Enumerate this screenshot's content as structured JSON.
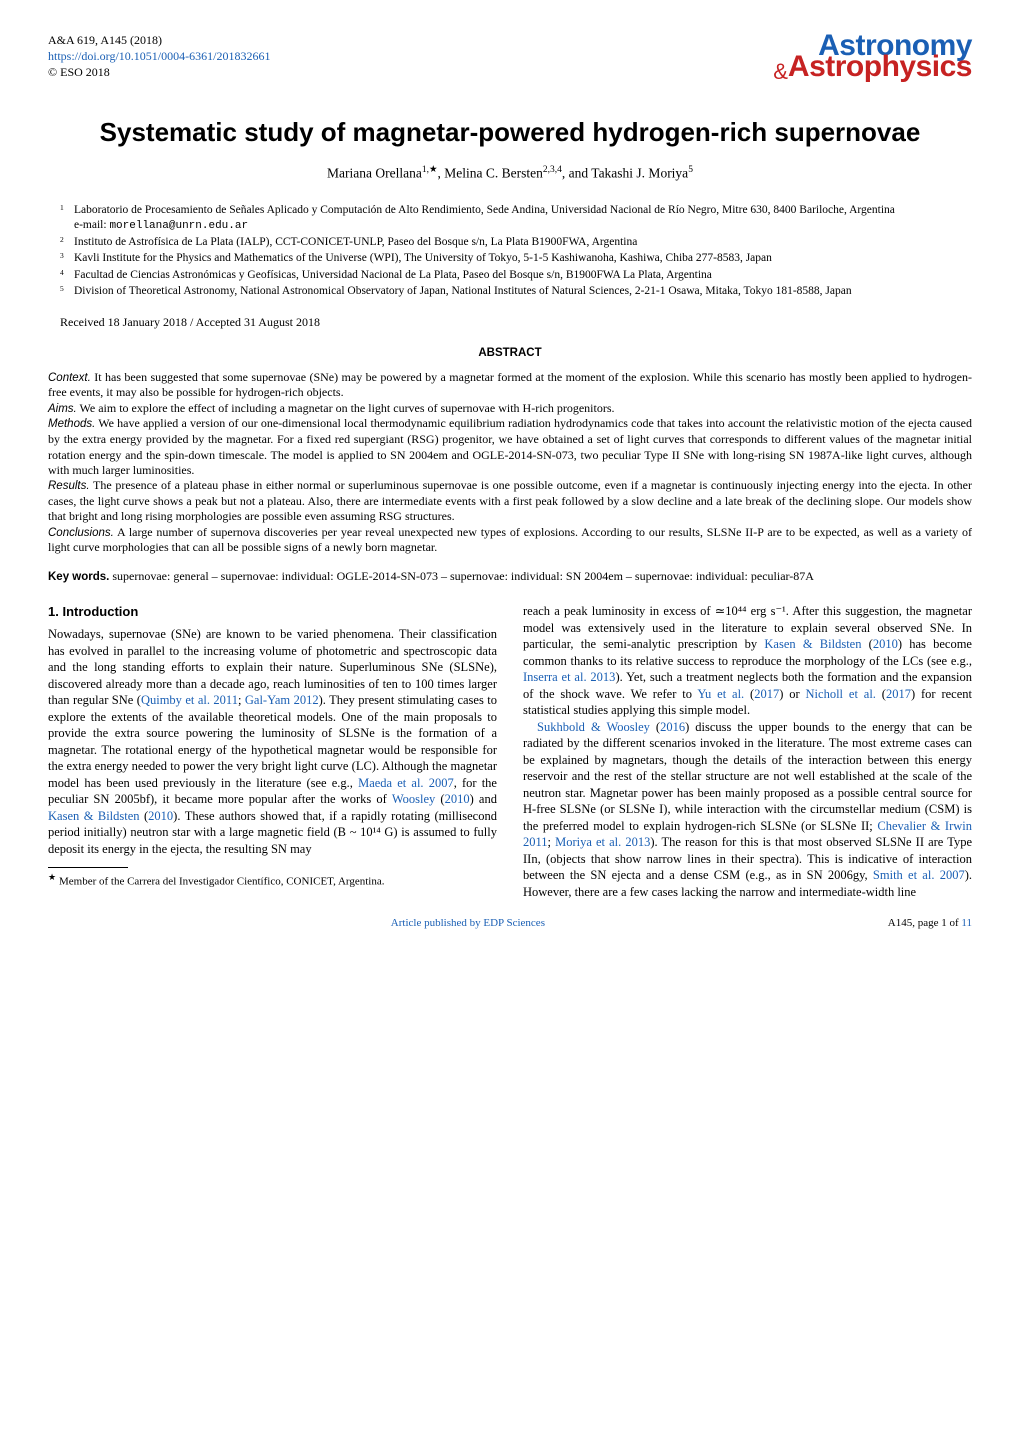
{
  "header": {
    "journal_ref": "A&A 619, A145 (2018)",
    "doi": "https://doi.org/10.1051/0004-6361/201832661",
    "copyright": "© ESO 2018",
    "logo_top": "Astronomy",
    "logo_amp": "&",
    "logo_bottom": "Astrophysics",
    "colors": {
      "astronomy": "#1a5fb4",
      "amp": "#c62222",
      "astrophysics": "#c62222"
    }
  },
  "title": "Systematic study of magnetar-powered hydrogen-rich supernovae",
  "authors": {
    "a1_name": "Mariana Orellana",
    "a1_sup": "1,★",
    "a2_name": "Melina C. Bersten",
    "a2_sup": "2,3,4",
    "a3_name": "Takashi J. Moriya",
    "a3_sup": "5",
    "sep_comma": ", ",
    "sep_and": ", and "
  },
  "affiliations": [
    {
      "num": "1",
      "text": "Laboratorio de Procesamiento de Señales Aplicado y Computación de Alto Rendimiento, Sede Andina, Universidad Nacional de Río Negro, Mitre 630, 8400 Bariloche, Argentina",
      "email_label": "e-mail: ",
      "email": "morellana@unrn.edu.ar"
    },
    {
      "num": "2",
      "text": "Instituto de Astrofísica de La Plata (IALP), CCT-CONICET-UNLP, Paseo del Bosque s/n, La Plata B1900FWA, Argentina"
    },
    {
      "num": "3",
      "text": "Kavli Institute for the Physics and Mathematics of the Universe (WPI), The University of Tokyo, 5-1-5 Kashiwanoha, Kashiwa, Chiba 277-8583, Japan"
    },
    {
      "num": "4",
      "text": "Facultad de Ciencias Astronómicas y Geofísicas, Universidad Nacional de La Plata, Paseo del Bosque s/n, B1900FWA La Plata, Argentina"
    },
    {
      "num": "5",
      "text": "Division of Theoretical Astronomy, National Astronomical Observatory of Japan, National Institutes of Natural Sciences, 2-21-1 Osawa, Mitaka, Tokyo 181-8588, Japan"
    }
  ],
  "dates": "Received 18 January 2018 / Accepted 31 August 2018",
  "abstract": {
    "heading": "ABSTRACT",
    "context_label": "Context.",
    "context": " It has been suggested that some supernovae (SNe) may be powered by a magnetar formed at the moment of the explosion. While this scenario has mostly been applied to hydrogen-free events, it may also be possible for hydrogen-rich objects.",
    "aims_label": "Aims.",
    "aims": " We aim to explore the effect of including a magnetar on the light curves of supernovae with H-rich progenitors.",
    "methods_label": "Methods.",
    "methods": " We have applied a version of our one-dimensional local thermodynamic equilibrium radiation hydrodynamics code that takes into account the relativistic motion of the ejecta caused by the extra energy provided by the magnetar. For a fixed red supergiant (RSG) progenitor, we have obtained a set of light curves that corresponds to different values of the magnetar initial rotation energy and the spin-down timescale. The model is applied to SN 2004em and OGLE-2014-SN-073, two peculiar Type II SNe with long-rising SN 1987A-like light curves, although with much larger luminosities.",
    "results_label": "Results.",
    "results": " The presence of a plateau phase in either normal or superluminous supernovae is one possible outcome, even if a magnetar is continuously injecting energy into the ejecta. In other cases, the light curve shows a peak but not a plateau. Also, there are intermediate events with a first peak followed by a slow decline and a late break of the declining slope. Our models show that bright and long rising morphologies are possible even assuming RSG structures.",
    "conclusions_label": "Conclusions.",
    "conclusions": " A large number of supernova discoveries per year reveal unexpected new types of explosions. According to our results, SLSNe II-P are to be expected, as well as a variety of light curve morphologies that can all be possible signs of a newly born magnetar."
  },
  "keywords": {
    "label": "Key words.",
    "text": " supernovae: general – supernovae: individual: OGLE-2014-SN-073 – supernovae: individual: SN 2004em – supernovae: individual: peculiar-87A"
  },
  "section1_heading": "1. Introduction",
  "col_left": {
    "p1a": "Nowadays, supernovae (SNe) are known to be varied phenomena. Their classification has evolved in parallel to the increasing volume of photometric and spectroscopic data and the long standing efforts to explain their nature. Superluminous SNe (SLSNe), discovered already more than a decade ago, reach luminosities of ten to 100 times larger than regular SNe (",
    "c1": "Quimby et al. 2011",
    "p1b": "; ",
    "c2": "Gal-Yam 2012",
    "p1c": "). They present stimulating cases to explore the extents of the available theoretical models. One of the main proposals to provide the extra source powering the luminosity of SLSNe is the formation of a magnetar. The rotational energy of the hypothetical magnetar would be responsible for the extra energy needed to power the very bright light curve (LC). Although the magnetar model has been used previously in the literature (see e.g., ",
    "c3": "Maeda et al. 2007",
    "p1d": ", for the peculiar SN 2005bf), it became more popular after the works of ",
    "c4": "Woosley",
    "p1e": " (",
    "c4y": "2010",
    "p1f": ") and ",
    "c5": "Kasen & Bildsten",
    "p1g": " (",
    "c5y": "2010",
    "p1h": "). These authors showed that, if a rapidly rotating (millisecond period initially) neutron star with a large magnetic field (B ~ 10¹⁴ G) is assumed to fully deposit its energy in the ejecta, the resulting SN may"
  },
  "col_right": {
    "p1a": "reach a peak luminosity in excess of ≃10⁴⁴ erg s⁻¹. After this suggestion, the magnetar model was extensively used in the literature to explain several observed SNe. In particular, the semi-analytic prescription by ",
    "c1": "Kasen & Bildsten",
    "p1b": " (",
    "c1y": "2010",
    "p1c": ") has become common thanks to its relative success to reproduce the morphology of the LCs (see e.g., ",
    "c2": "Inserra et al. 2013",
    "p1d": "). Yet, such a treatment neglects both the formation and the expansion of the shock wave. We refer to ",
    "c3": "Yu et al.",
    "p1e": " (",
    "c3y": "2017",
    "p1f": ") or ",
    "c4": "Nicholl et al.",
    "p1g": " (",
    "c4y": "2017",
    "p1h": ") for recent statistical studies applying this simple model.",
    "p2indent_a": "",
    "c5": "Sukhbold & Woosley",
    "p2a": " (",
    "c5y": "2016",
    "p2b": ") discuss the upper bounds to the energy that can be radiated by the different scenarios invoked in the literature. The most extreme cases can be explained by magnetars, though the details of the interaction between this energy reservoir and the rest of the stellar structure are not well established at the scale of the neutron star. Magnetar power has been mainly proposed as a possible central source for H-free SLSNe (or SLSNe I), while interaction with the circumstellar medium (CSM) is the preferred model to explain hydrogen-rich SLSNe (or SLSNe II; ",
    "c6": "Chevalier & Irwin 2011",
    "p2c": "; ",
    "c7": "Moriya et al. 2013",
    "p2d": "). The reason for this is that most observed SLSNe II are Type IIn, (objects that show narrow lines in their spectra). This is indicative of interaction between the SN ejecta and a dense CSM (e.g., as in SN 2006gy, ",
    "c8": "Smith et al. 2007",
    "p2e": "). However, there are a few cases lacking the narrow and intermediate-width line"
  },
  "footnote": {
    "mark": "★",
    "text": " Member of the Carrera del Investigador Científico, CONICET, Argentina."
  },
  "footer": {
    "center": "Article published by EDP Sciences",
    "right": "A145, page 1 of ",
    "right_link": "11"
  }
}
